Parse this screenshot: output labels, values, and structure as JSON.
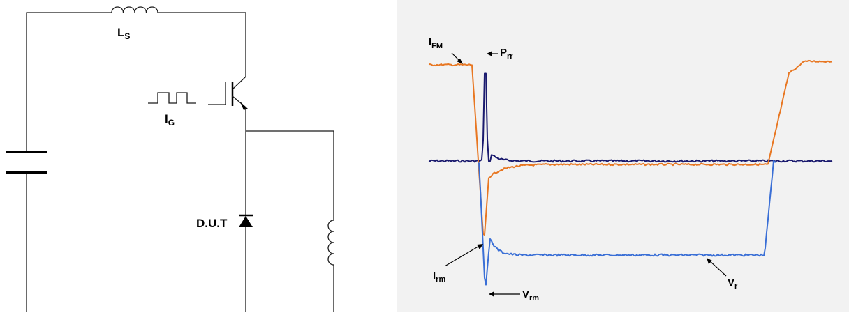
{
  "circuit": {
    "inductor_label": {
      "main": "L",
      "sub": "S"
    },
    "gate_label": {
      "main": "I",
      "sub": "G"
    },
    "dut_label": "D.U.T"
  },
  "waveform": {
    "labels": {
      "ifm": {
        "main": "I",
        "sub": "FM"
      },
      "prr": {
        "main": "P",
        "sub": "rr"
      },
      "irm": {
        "main": "I",
        "sub": "rm"
      },
      "vrm": {
        "main": "V",
        "sub": "rm"
      },
      "vr": {
        "main": "V",
        "sub": "r"
      }
    },
    "colors": {
      "current": "#e87722",
      "power": "#1a1a6e",
      "voltage": "#3a6fd6",
      "panel": "#f2f2f2"
    }
  }
}
